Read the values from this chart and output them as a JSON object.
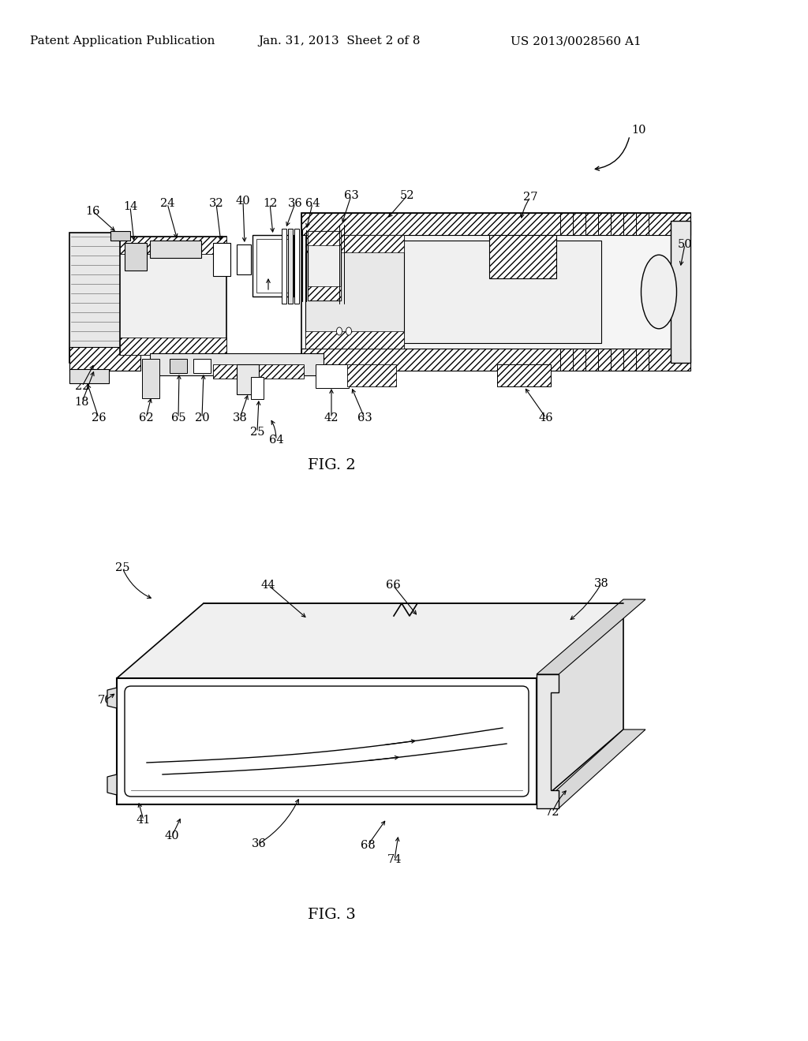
{
  "background_color": "#ffffff",
  "header_left": "Patent Application Publication",
  "header_center": "Jan. 31, 2013  Sheet 2 of 8",
  "header_right": "US 2013/0028560 A1",
  "header_fontsize": 11,
  "fig2_caption": "FIG. 2",
  "fig3_caption": "FIG. 3",
  "label_fontsize": 10.5
}
